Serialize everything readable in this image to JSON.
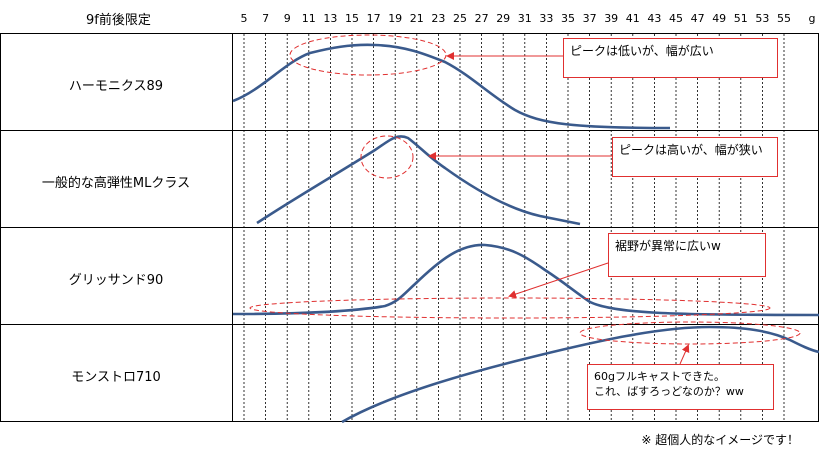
{
  "header": {
    "title": "9f前後限定",
    "unit": "g"
  },
  "axis": {
    "ticks": [
      "5",
      "7",
      "9",
      "11",
      "13",
      "15",
      "17",
      "19",
      "21",
      "23",
      "25",
      "27",
      "29",
      "31",
      "33",
      "35",
      "37",
      "39",
      "41",
      "43",
      "45",
      "47",
      "49",
      "51",
      "53",
      "55"
    ]
  },
  "rows": [
    {
      "name": "ハーモニクス89",
      "callout": "ピークは低いが、幅が広い"
    },
    {
      "name": "一般的な高弾性MLクラス",
      "callout": "ピークは高いが、幅が狭い"
    },
    {
      "name": "グリッサンド90",
      "callout": "裾野が異常に広いw"
    },
    {
      "name": "モンストロ710",
      "callout_line1": "60gフルキャストできた。",
      "callout_line2": "これ、ばすろっどなのか？ww"
    }
  ],
  "footnote": "※ 超個人的なイメージです！",
  "colors": {
    "curve": "#3a5a8c",
    "annotation": "#e03030",
    "grid": "#000000"
  }
}
